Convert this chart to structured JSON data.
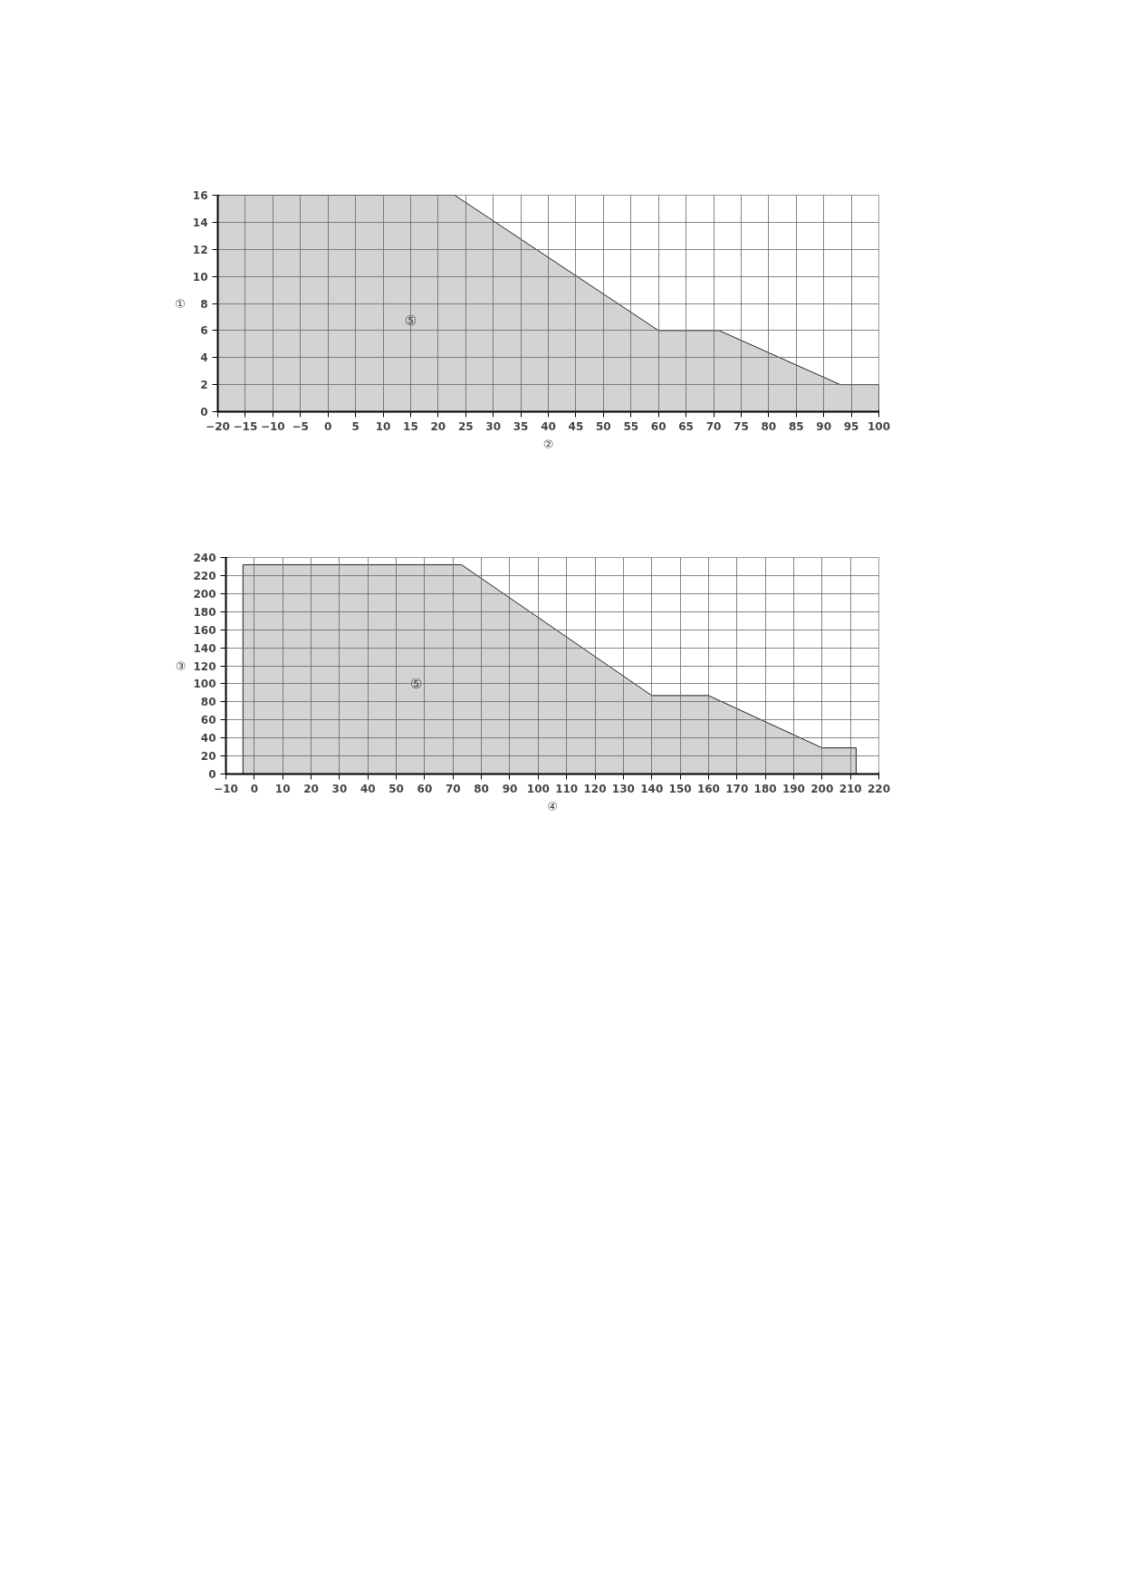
{
  "chart_data": [
    {
      "type": "area",
      "xlabel": "②",
      "ylabel": "①",
      "x": [
        -20,
        23,
        60,
        71,
        93,
        100
      ],
      "series": [
        {
          "color": "#d3d3d3",
          "values": [
            16,
            16,
            6,
            6,
            2,
            2
          ]
        }
      ],
      "xlim": [
        -20,
        100
      ],
      "xticks": [
        -20,
        -15,
        -10,
        -5,
        0,
        5,
        10,
        15,
        20,
        25,
        30,
        35,
        40,
        45,
        50,
        55,
        60,
        65,
        70,
        75,
        80,
        85,
        90,
        95,
        100
      ],
      "ylim": [
        0,
        16
      ],
      "yticks": [
        0,
        2,
        4,
        6,
        8,
        10,
        12,
        14,
        16
      ],
      "grid": true,
      "annotations": [
        {
          "text": "⑤",
          "x": 15,
          "y": 6.7
        }
      ]
    },
    {
      "type": "area",
      "xlabel": "④",
      "ylabel": "③",
      "x": [
        -4,
        73,
        140,
        160,
        200,
        212
      ],
      "series": [
        {
          "color": "#d3d3d3",
          "values": [
            232,
            232,
            87,
            87,
            29,
            29
          ]
        }
      ],
      "xlim": [
        -10,
        220
      ],
      "xticks": [
        -10,
        0,
        10,
        20,
        30,
        40,
        50,
        60,
        70,
        80,
        90,
        100,
        110,
        120,
        130,
        140,
        150,
        160,
        170,
        180,
        190,
        200,
        210,
        220
      ],
      "ylim": [
        0,
        240
      ],
      "yticks": [
        0,
        20,
        40,
        60,
        80,
        100,
        120,
        140,
        160,
        180,
        200,
        220,
        240
      ],
      "grid": true,
      "annotations": [
        {
          "text": "⑤",
          "x": 57,
          "y": 100
        }
      ]
    }
  ]
}
